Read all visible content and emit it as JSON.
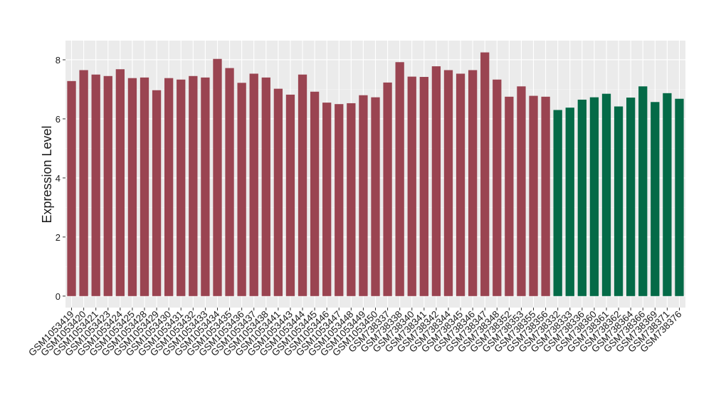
{
  "chart_data": {
    "type": "bar",
    "y_label": "Expression Level",
    "categories": [
      "GSM1053419",
      "GSM1053420",
      "GSM1053421",
      "GSM1053423",
      "GSM1053424",
      "GSM1053425",
      "GSM1053428",
      "GSM1053429",
      "GSM1053430",
      "GSM1053431",
      "GSM1053432",
      "GSM1053433",
      "GSM1053434",
      "GSM1053435",
      "GSM1053436",
      "GSM1053437",
      "GSM1053438",
      "GSM1053441",
      "GSM1053443",
      "GSM1053444",
      "GSM1053445",
      "GSM1053446",
      "GSM1053447",
      "GSM1053448",
      "GSM1053449",
      "GSM1053450",
      "GSM738337",
      "GSM738338",
      "GSM738340",
      "GSM738341",
      "GSM738342",
      "GSM738344",
      "GSM738345",
      "GSM738346",
      "GSM738347",
      "GSM738348",
      "GSM738352",
      "GSM738353",
      "GSM738355",
      "GSM738356",
      "GSM738332",
      "GSM738333",
      "GSM738336",
      "GSM738360",
      "GSM738361",
      "GSM738362",
      "GSM738364",
      "GSM738366",
      "GSM738369",
      "GSM738371",
      "GSM738376"
    ],
    "values": [
      7.28,
      7.65,
      7.5,
      7.45,
      7.68,
      7.38,
      7.4,
      6.97,
      7.38,
      7.33,
      7.45,
      7.4,
      8.03,
      7.72,
      7.22,
      7.53,
      7.4,
      7.02,
      6.82,
      7.5,
      6.92,
      6.55,
      6.5,
      6.53,
      6.8,
      6.73,
      7.23,
      7.92,
      7.43,
      7.42,
      7.78,
      7.65,
      7.53,
      7.65,
      8.25,
      7.33,
      6.75,
      7.1,
      6.78,
      6.75,
      6.3,
      6.38,
      6.65,
      6.73,
      6.85,
      6.42,
      6.72,
      7.1,
      6.57,
      6.87,
      6.68
    ],
    "colors": [
      "#9a4451",
      "#9a4451",
      "#9a4451",
      "#9a4451",
      "#9a4451",
      "#9a4451",
      "#9a4451",
      "#9a4451",
      "#9a4451",
      "#9a4451",
      "#9a4451",
      "#9a4451",
      "#9a4451",
      "#9a4451",
      "#9a4451",
      "#9a4451",
      "#9a4451",
      "#9a4451",
      "#9a4451",
      "#9a4451",
      "#9a4451",
      "#9a4451",
      "#9a4451",
      "#9a4451",
      "#9a4451",
      "#9a4451",
      "#9a4451",
      "#9a4451",
      "#9a4451",
      "#9a4451",
      "#9a4451",
      "#9a4451",
      "#9a4451",
      "#9a4451",
      "#9a4451",
      "#9a4451",
      "#9a4451",
      "#9a4451",
      "#9a4451",
      "#9a4451",
      "#046a47",
      "#046a47",
      "#046a47",
      "#046a47",
      "#046a47",
      "#046a47",
      "#046a47",
      "#046a47",
      "#046a47",
      "#046a47",
      "#046a47"
    ],
    "ylim": [
      -0.39,
      8.65
    ],
    "yticks": [
      0,
      2,
      4,
      6,
      8
    ],
    "grid": true
  }
}
